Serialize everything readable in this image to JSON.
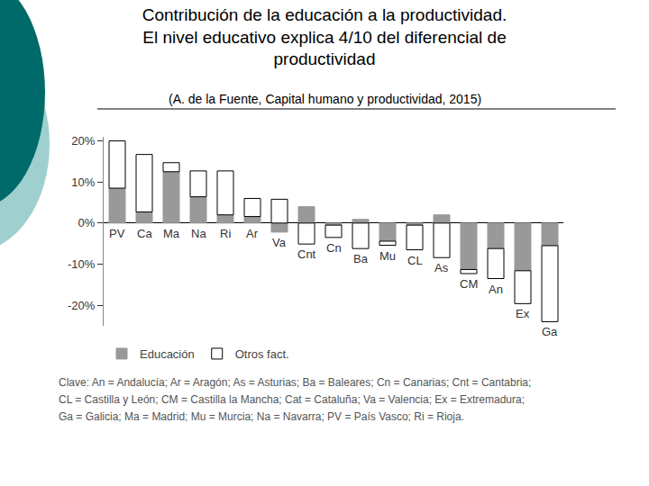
{
  "chart_data": {
    "type": "bar",
    "title": [
      "Contribución de la educación a la productividad.",
      "El nivel educativo explica 4/10 del diferencial de",
      "productividad"
    ],
    "subtitle": "(A. de la Fuente, Capital humano y productividad, 2015)",
    "categories": [
      "PV",
      "Ca",
      "Ma",
      "Na",
      "Ri",
      "Ar",
      "Va",
      "Cnt",
      "Cn",
      "Ba",
      "Mu",
      "CL",
      "As",
      "CM",
      "An",
      "Ex",
      "Ga"
    ],
    "series": [
      {
        "name": "Educación",
        "color": "#999999",
        "values": [
          8.5,
          2.7,
          12.5,
          6.4,
          2.0,
          1.6,
          -2.2,
          4.0,
          -0.5,
          0.9,
          -4.4,
          -0.5,
          2.0,
          -11.3,
          -6.2,
          -11.6,
          -5.5
        ]
      },
      {
        "name": "Otros fact.",
        "color": "#ffffff",
        "values": [
          11.5,
          14.0,
          2.2,
          6.3,
          10.7,
          4.4,
          5.8,
          -5.1,
          -3.0,
          -6.2,
          -1.0,
          -6.0,
          -8.4,
          -1.0,
          -7.3,
          -8.0,
          -18.5
        ]
      }
    ],
    "stacked": true,
    "ylim": [
      -25,
      21
    ],
    "yticks": [
      {
        "value": 20,
        "label": "20%"
      },
      {
        "value": 10,
        "label": "10%"
      },
      {
        "value": 0,
        "label": "0%"
      },
      {
        "value": -10,
        "label": "-10%"
      },
      {
        "value": -20,
        "label": "-20%"
      }
    ],
    "grid": false,
    "legend": "bottom left",
    "tick_labels": "y",
    "annotations": [
      "Clave: An = Andalucía; Ar = Aragón; As = Asturias; Ba = Baleares; Cn = Canarias; Cnt = Cantabria;",
      "CL = Castilla y León; CM = Castilla la Mancha; Cat = Cataluña; Va = Valencia; Ex = Extremadura;",
      "Ga = Galicia; Ma = Madrid; Mu = Murcia; Na = Navarra; PV = País Vasco; Ri = Rioja."
    ]
  }
}
